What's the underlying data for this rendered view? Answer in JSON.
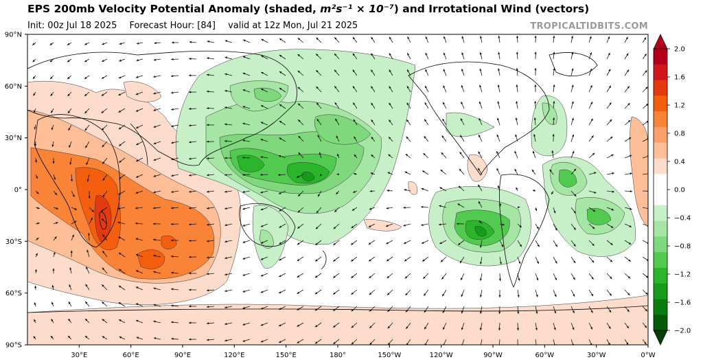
{
  "header": {
    "title_main": "EPS 200mb Velocity Potential Anomaly (shaded, ",
    "title_units": "m²s⁻¹ × 10⁻⁷",
    "title_tail": ") and Irrotational Wind (vectors)",
    "init": "Init: 00z Jul 18 2025",
    "forecast_hour": "Forecast Hour: [84]",
    "valid": "valid at 12z Mon, Jul 21 2025",
    "brand": "TROPICALTIDBITS.COM"
  },
  "map": {
    "lat_ticks": [
      "90°N",
      "60°N",
      "30°N",
      "0°",
      "30°S",
      "60°S",
      "90°S"
    ],
    "lon_ticks": [
      "30°E",
      "60°E",
      "90°E",
      "120°E",
      "150°E",
      "180°",
      "150°W",
      "120°W",
      "90°W",
      "60°W",
      "30°W",
      "0°W"
    ]
  },
  "colorbar": {
    "labels": [
      "2.0",
      "1.6",
      "1.2",
      "0.8",
      "0.4",
      "0.0",
      "−0.4",
      "−0.8",
      "−1.2",
      "−1.6",
      "−2.0"
    ],
    "colors": [
      "#b2001a",
      "#d0181c",
      "#e33a0f",
      "#f35f0f",
      "#f98337",
      "#fba06a",
      "#fdbe98",
      "#fddccc",
      "#ffffff",
      "#ffffff",
      "#c8f0c8",
      "#a6e6a4",
      "#7fd87c",
      "#52c94f",
      "#2ab52a",
      "#169c1a",
      "#0a7c10",
      "#055a08"
    ]
  }
}
